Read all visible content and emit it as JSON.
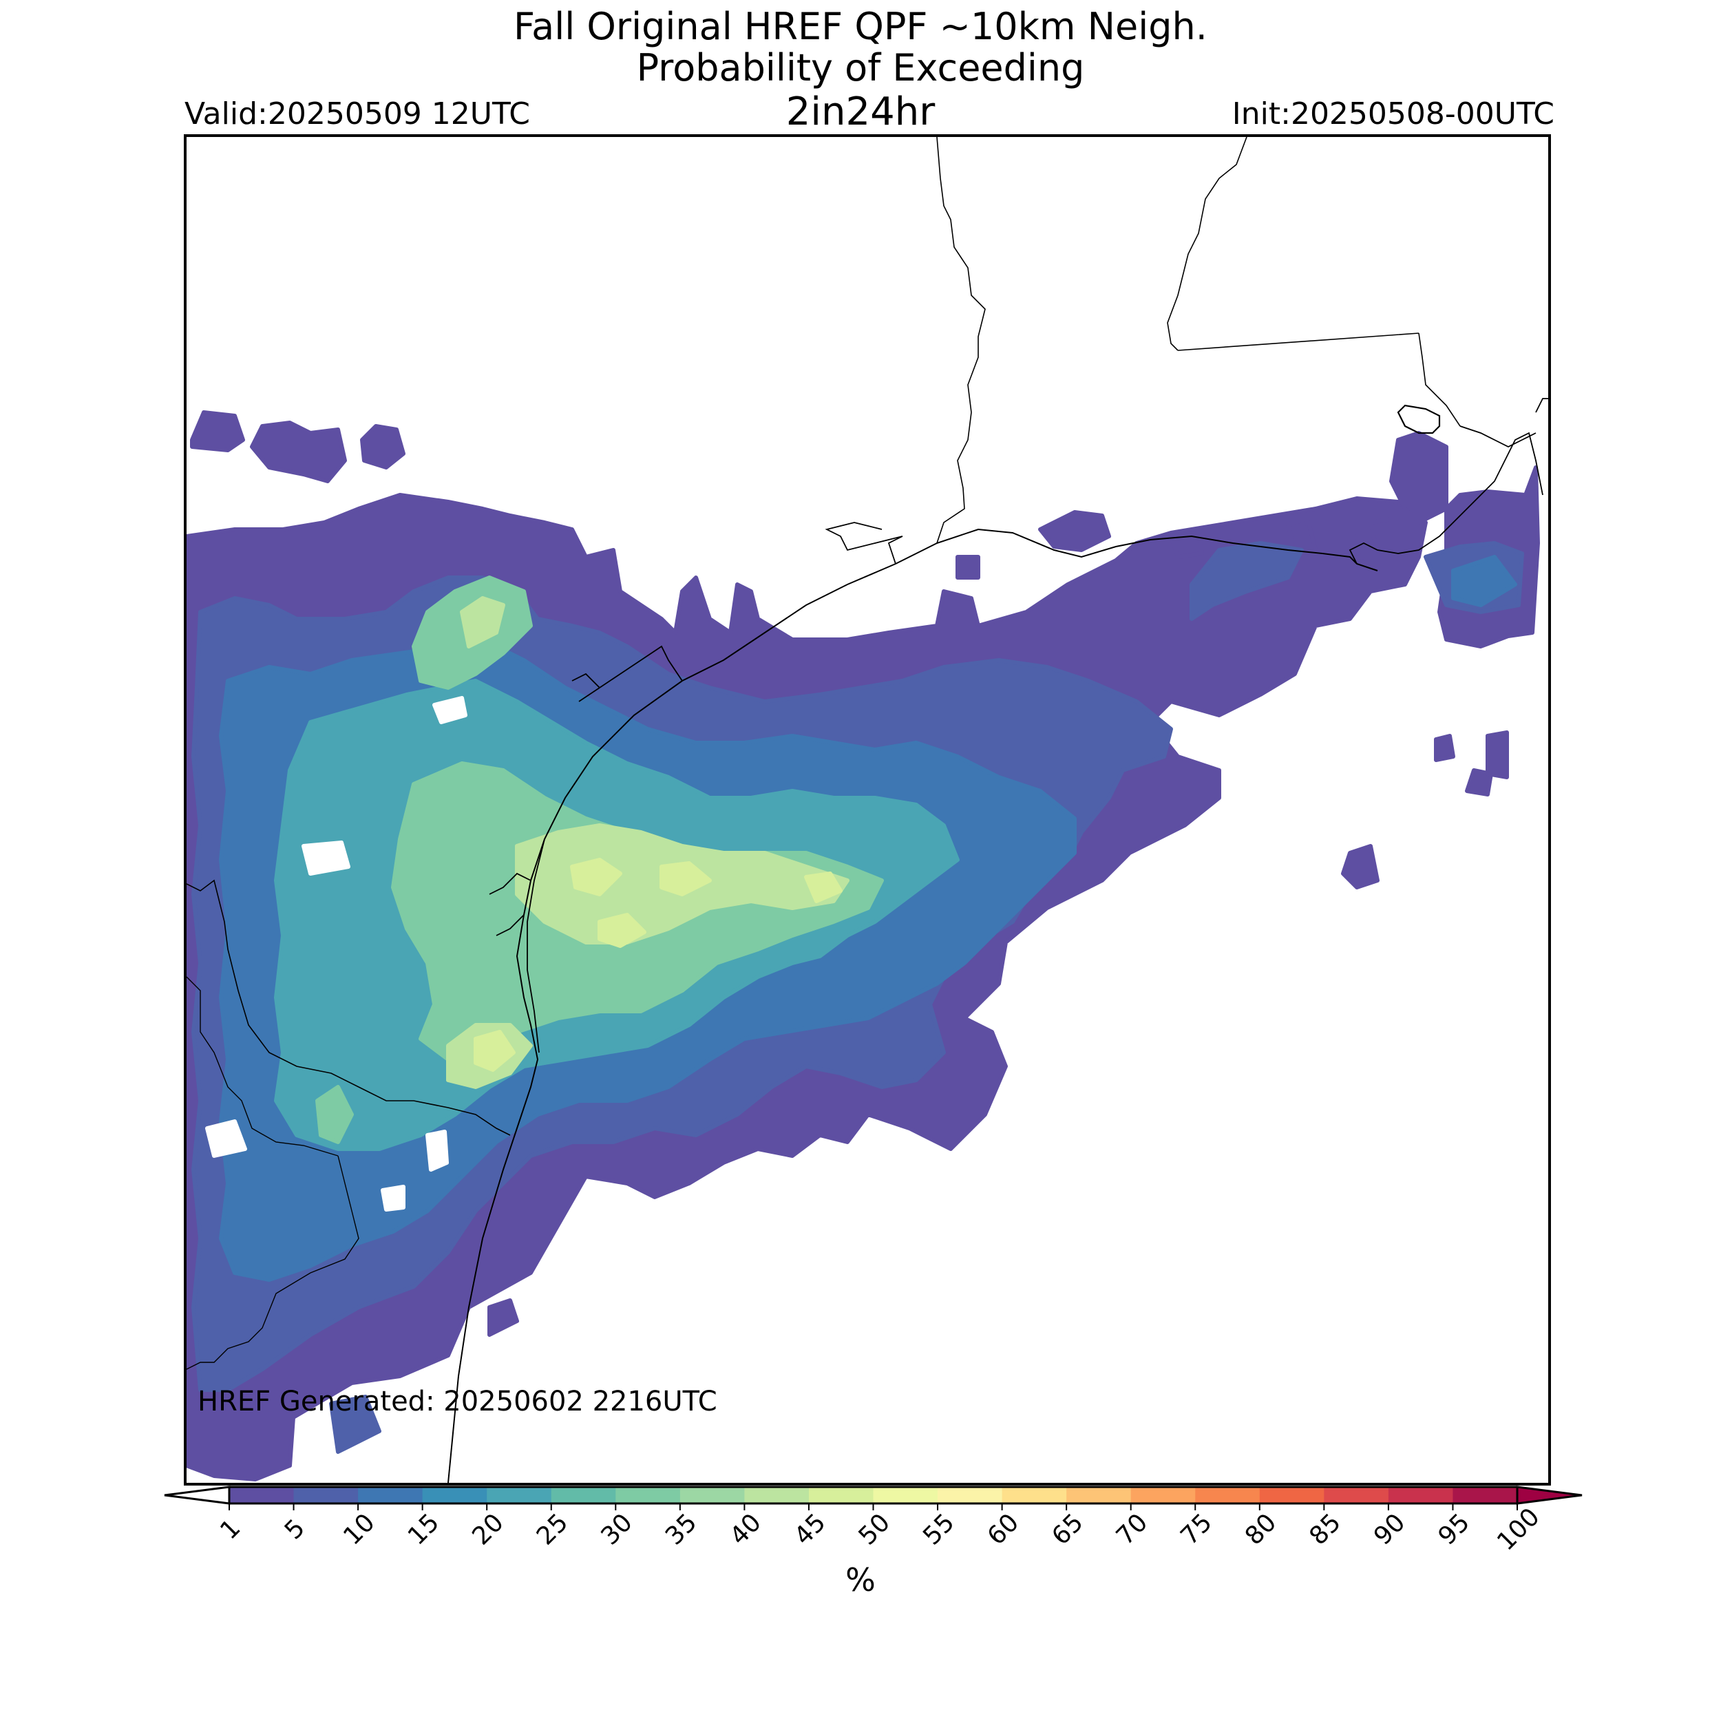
{
  "header": {
    "title_line1": "Fall Original HREF QPF ~10km Neigh.",
    "title_line2": "Probability of Exceeding",
    "title_line3": "2in24hr",
    "valid": "Valid:20250509 12UTC",
    "init": "Init:20250508-00UTC"
  },
  "map": {
    "footer_note": "HREF Generated: 20250602 2216UTC",
    "land_color": "#ffffff",
    "border_color": "#000000",
    "water_color": "#eef3f8"
  },
  "colorbar": {
    "unit": "%",
    "tick_labels": [
      "1",
      "5",
      "10",
      "15",
      "20",
      "25",
      "30",
      "35",
      "40",
      "45",
      "50",
      "55",
      "60",
      "65",
      "70",
      "75",
      "80",
      "85",
      "90",
      "95",
      "100"
    ],
    "colors": [
      "#5e4fa2",
      "#4f61aa",
      "#3e77b3",
      "#3990b7",
      "#4aa5b4",
      "#62bba8",
      "#7ecba4",
      "#9cd7a4",
      "#bce4a0",
      "#d7ef9b",
      "#eef8a3",
      "#fbf3a8",
      "#fee08b",
      "#fdc476",
      "#fca45f",
      "#f7864e",
      "#ef6644",
      "#de4b4b",
      "#c9324d",
      "#a9154a",
      "#9e0142"
    ]
  },
  "legend_entries": [
    {
      "color": "#5e4fa2",
      "label": "1"
    },
    {
      "color": "#3e77b3",
      "label": "10"
    },
    {
      "color": "#62bba8",
      "label": "25"
    },
    {
      "color": "#bce4a0",
      "label": "40"
    },
    {
      "color": "#eef8a3",
      "label": "50"
    }
  ]
}
